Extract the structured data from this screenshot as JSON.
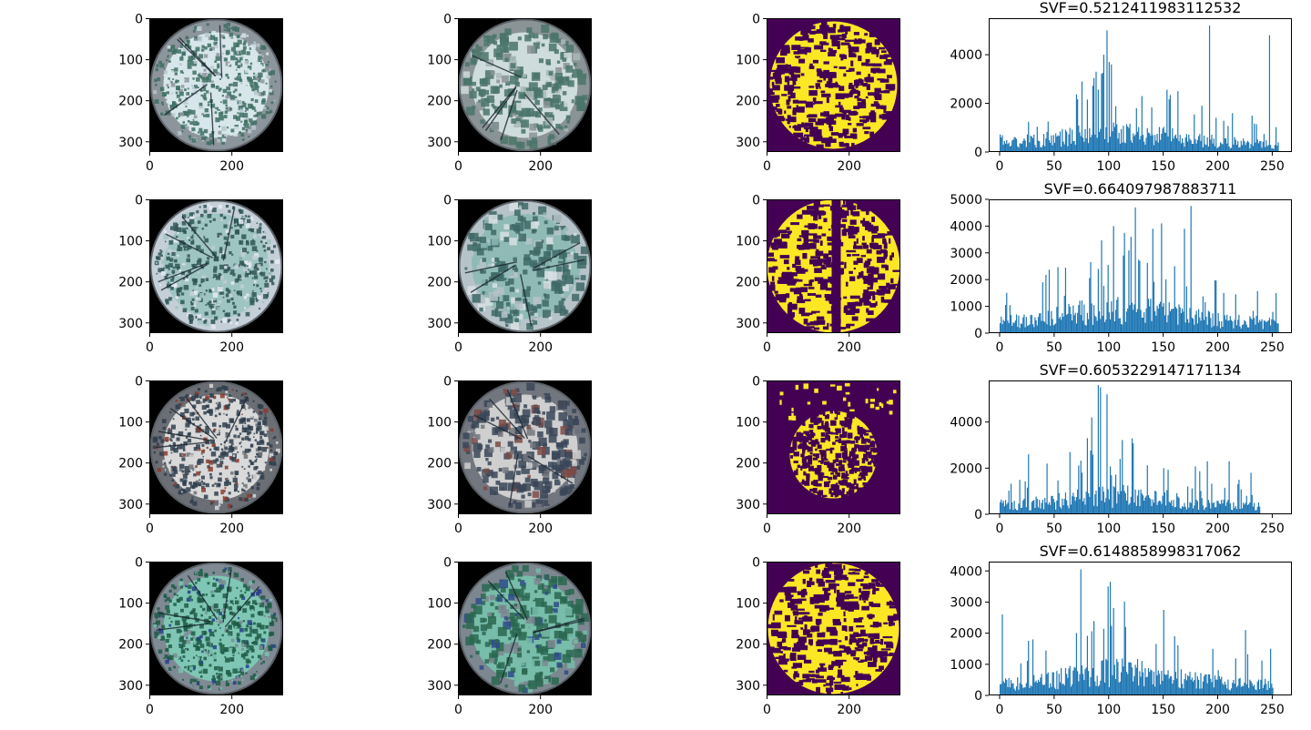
{
  "figure": {
    "rows": [
      {
        "image_panels": [
          {
            "kind": "original",
            "xticks": [
              "0",
              "200"
            ],
            "yticks": [
              "0",
              "100",
              "200",
              "300"
            ],
            "palette": {
              "bg": "#000000",
              "rim": "#8d959c",
              "canopy": "#3f6e63",
              "sky": "#d7e6ea",
              "accent": "#b7c7cf"
            }
          },
          {
            "kind": "quantized",
            "xticks": [
              "0",
              "200"
            ],
            "yticks": [
              "0",
              "100",
              "200",
              "300"
            ],
            "palette": {
              "bg": "#000000",
              "rim": "#8a9396",
              "canopy": "#4a7468",
              "sky": "#cfdcdc",
              "accent": "#a9b9b8"
            }
          },
          {
            "kind": "binary-mask",
            "xticks": [
              "0",
              "200"
            ],
            "yticks": [
              "0",
              "100",
              "200",
              "300"
            ],
            "palette": {
              "bg": "#440154",
              "sky": "#fde725"
            }
          }
        ],
        "histogram": {
          "title": "SVF=0.5212411983112532",
          "xticks": [
            "0",
            "50",
            "100",
            "150",
            "200",
            "250"
          ],
          "yticks": [
            "0",
            "2000",
            "4000"
          ],
          "color": "#1f77b4",
          "spikes": [
            [
              98,
              5000
            ],
            [
              95,
              4000
            ],
            [
              100,
              3700
            ],
            [
              102,
              3600
            ],
            [
              192,
              5200
            ],
            [
              247,
              4800
            ],
            [
              75,
              2900
            ],
            [
              125,
              1800
            ],
            [
              163,
              2500
            ],
            [
              185,
              1900
            ],
            [
              130,
              2300
            ],
            [
              88,
              3300
            ]
          ]
        }
      },
      {
        "image_panels": [
          {
            "kind": "original",
            "xticks": [
              "0",
              "200"
            ],
            "yticks": [
              "0",
              "100",
              "200",
              "300"
            ],
            "palette": {
              "bg": "#000000",
              "rim": "#c5cfd8",
              "canopy": "#2f5656",
              "sky": "#9fc5c2",
              "accent": "#e6eaf4"
            }
          },
          {
            "kind": "quantized",
            "xticks": [
              "0",
              "200"
            ],
            "yticks": [
              "0",
              "100",
              "200",
              "300"
            ],
            "palette": {
              "bg": "#000000",
              "rim": "#b6c3c9",
              "canopy": "#3e6866",
              "sky": "#8fbab6",
              "accent": "#d9e1e4"
            }
          },
          {
            "kind": "binary-mask",
            "xticks": [
              "0",
              "200"
            ],
            "yticks": [
              "0",
              "100",
              "200",
              "300"
            ],
            "palette": {
              "bg": "#440154",
              "sky": "#fde725"
            }
          }
        ],
        "histogram": {
          "title": "SVF=0.664097987883711",
          "xticks": [
            "0",
            "50",
            "100",
            "150",
            "200",
            "250"
          ],
          "yticks": [
            "0",
            "1000",
            "2000",
            "3000",
            "4000",
            "5000"
          ],
          "color": "#1f77b4",
          "spikes": [
            [
              104,
              4000
            ],
            [
              124,
              4700
            ],
            [
              175,
              4750
            ],
            [
              148,
              4100
            ],
            [
              120,
              3600
            ],
            [
              140,
              3900
            ],
            [
              169,
              3900
            ],
            [
              113,
              2900
            ],
            [
              90,
              2400
            ],
            [
              128,
              2700
            ],
            [
              160,
              2500
            ]
          ]
        }
      },
      {
        "image_panels": [
          {
            "kind": "original",
            "xticks": [
              "0",
              "200"
            ],
            "yticks": [
              "0",
              "100",
              "200",
              "300"
            ],
            "palette": {
              "bg": "#000000",
              "rim": "#6b6e74",
              "canopy": "#2f3e4e",
              "sky": "#d9d9d9",
              "accent": "#8a3b2e"
            }
          },
          {
            "kind": "quantized",
            "xticks": [
              "0",
              "200"
            ],
            "yticks": [
              "0",
              "100",
              "200",
              "300"
            ],
            "palette": {
              "bg": "#000000",
              "rim": "#72767e",
              "canopy": "#3a4658",
              "sky": "#cfcfcf",
              "accent": "#7c4a45"
            }
          },
          {
            "kind": "binary-mask",
            "xticks": [
              "0",
              "200"
            ],
            "yticks": [
              "0",
              "100",
              "200",
              "300"
            ],
            "palette": {
              "bg": "#440154",
              "sky": "#fde725"
            }
          }
        ],
        "histogram": {
          "title": "SVF=0.6053229147171134",
          "xticks": [
            "0",
            "50",
            "100",
            "150",
            "200",
            "250"
          ],
          "yticks": [
            "0",
            "2000",
            "4000"
          ],
          "color": "#1f77b4",
          "spikes": [
            [
              90,
              5600
            ],
            [
              92,
              5500
            ],
            [
              98,
              5200
            ],
            [
              84,
              4200
            ],
            [
              80,
              3300
            ],
            [
              26,
              2600
            ],
            [
              64,
              2700
            ],
            [
              110,
              2400
            ],
            [
              190,
              2300
            ],
            [
              210,
              2300
            ],
            [
              150,
              2000
            ],
            [
              230,
              1800
            ]
          ]
        }
      },
      {
        "image_panels": [
          {
            "kind": "original",
            "xticks": [
              "0",
              "200"
            ],
            "yticks": [
              "0",
              "100",
              "200",
              "300"
            ],
            "palette": {
              "bg": "#000000",
              "rim": "#7f8a94",
              "canopy": "#1f5b45",
              "sky": "#7fc7b4",
              "accent": "#27408b"
            }
          },
          {
            "kind": "quantized",
            "xticks": [
              "0",
              "200"
            ],
            "yticks": [
              "0",
              "100",
              "200",
              "300"
            ],
            "palette": {
              "bg": "#000000",
              "rim": "#7c8790",
              "canopy": "#2a6750",
              "sky": "#78bcaa",
              "accent": "#2f4a8a"
            }
          },
          {
            "kind": "binary-mask",
            "xticks": [
              "0",
              "200"
            ],
            "yticks": [
              "0",
              "100",
              "200",
              "300"
            ],
            "palette": {
              "bg": "#440154",
              "sky": "#fde725"
            }
          }
        ],
        "histogram": {
          "title": "SVF=0.6148858998317062",
          "xticks": [
            "0",
            "50",
            "100",
            "150",
            "200",
            "250"
          ],
          "yticks": [
            "0",
            "1000",
            "2000",
            "3000",
            "4000"
          ],
          "color": "#1f77b4",
          "spikes": [
            [
              74,
              4050
            ],
            [
              101,
              3650
            ],
            [
              99,
              3500
            ],
            [
              150,
              2750
            ],
            [
              2,
              2600
            ],
            [
              30,
              1800
            ],
            [
              115,
              2200
            ],
            [
              225,
              2100
            ],
            [
              160,
              1900
            ],
            [
              248,
              1500
            ]
          ]
        }
      }
    ]
  },
  "chart_data": [
    {
      "type": "histogram",
      "title": "SVF=0.5212411983112532",
      "xlim": [
        -10,
        268
      ],
      "ylim": [
        0,
        5500
      ],
      "bins": 256,
      "base_level": 800,
      "grid": false
    },
    {
      "type": "histogram",
      "title": "SVF=0.664097987883711",
      "xlim": [
        -10,
        268
      ],
      "ylim": [
        0,
        5000
      ],
      "bins": 256,
      "base_level": 900,
      "grid": false
    },
    {
      "type": "histogram",
      "title": "SVF=0.6053229147171134",
      "xlim": [
        -10,
        268
      ],
      "ylim": [
        0,
        5800
      ],
      "bins": 256,
      "base_level": 800,
      "grid": false
    },
    {
      "type": "histogram",
      "title": "SVF=0.6148858998317062",
      "xlim": [
        -10,
        268
      ],
      "ylim": [
        0,
        4300
      ],
      "bins": 256,
      "base_level": 750,
      "grid": false
    }
  ]
}
